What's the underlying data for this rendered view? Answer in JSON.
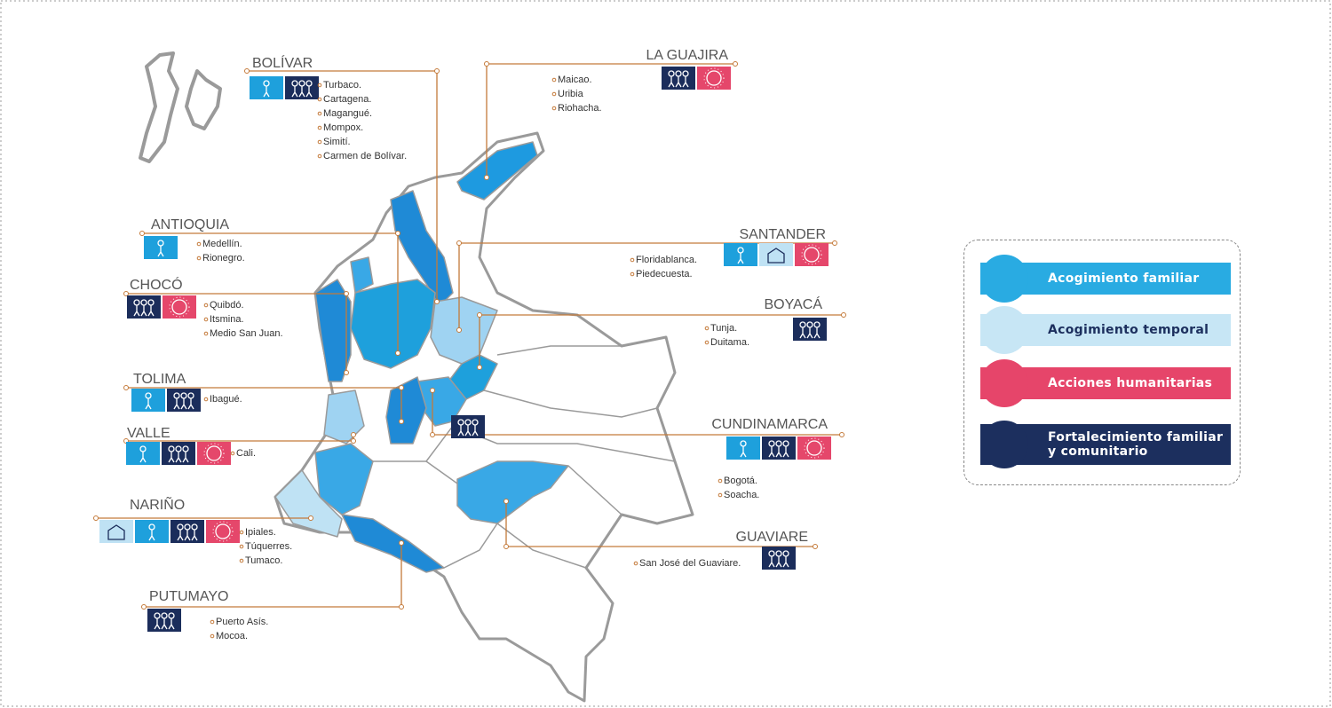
{
  "regions": [
    {
      "name": "BOLÍVAR",
      "cities": [
        "Turbaco.",
        "Cartagena.",
        "Magangué.",
        "Mompox.",
        "Simití.",
        "Carmen de Bolívar."
      ]
    },
    {
      "name": "LA GUAJIRA",
      "cities": [
        "Maicao.",
        "Uribia",
        "Riohacha."
      ]
    },
    {
      "name": "ANTIOQUIA",
      "cities": [
        "Medellín.",
        "Rionegro."
      ]
    },
    {
      "name": "SANTANDER",
      "cities": [
        "Floridablanca.",
        "Piedecuesta."
      ]
    },
    {
      "name": "CHOCÓ",
      "cities": [
        "Quibdó.",
        "Itsmina.",
        "Medio San Juan."
      ]
    },
    {
      "name": "BOYACÁ",
      "cities": [
        "Tunja.",
        "Duitama."
      ]
    },
    {
      "name": "TOLIMA",
      "cities": [
        "Ibagué."
      ]
    },
    {
      "name": "VALLE",
      "cities": [
        "Cali."
      ]
    },
    {
      "name": "CUNDINAMARCA",
      "cities": [
        "Bogotá.",
        "Soacha."
      ]
    },
    {
      "name": "NARIÑO",
      "cities": [
        "Ipiales.",
        "Túquerres.",
        "Tumaco."
      ]
    },
    {
      "name": "GUAVIARE",
      "cities": [
        "San José del Guaviare."
      ]
    },
    {
      "name": "PUTUMAYO",
      "cities": [
        "Puerto Asís.",
        "Mocoa."
      ]
    }
  ],
  "legend": [
    "Acogimiento familiar",
    "Acogimiento temporal",
    "Acciones humanitarias",
    "Fortalecimiento familiar y comunitario"
  ]
}
